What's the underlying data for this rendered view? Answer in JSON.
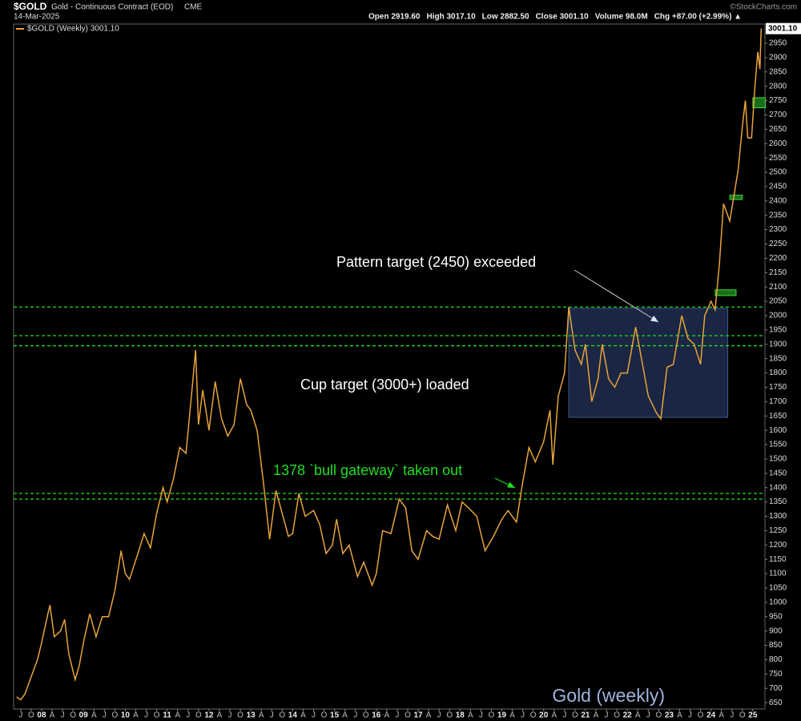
{
  "chart_data": {
    "type": "line",
    "symbol": "$GOLD",
    "title": "Gold - Continuous Contract (EOD)",
    "exchange": "CME",
    "date": "14-Mar-2025",
    "quote": [
      "Open 2919.60",
      "High 3017.10",
      "Low 2882.50",
      "Close 3001.10",
      "Volume 98.0M",
      "Chg +87.00 (+2.99%) ▲"
    ],
    "credit": "©StockCharts.com",
    "watermark": "Gold (weekly)",
    "last_tag": {
      "text": "3001.10",
      "value": 3001.1
    },
    "series": [
      {
        "name": "$GOLD (Weekly) 3001.10",
        "color": "#e8a33a",
        "x": [
          2007.4,
          2007.5,
          2007.6,
          2007.75,
          2007.9,
          2008.0,
          2008.15,
          2008.2,
          2008.3,
          2008.45,
          2008.55,
          2008.65,
          2008.8,
          2008.9,
          2009.0,
          2009.15,
          2009.3,
          2009.45,
          2009.6,
          2009.75,
          2009.9,
          2010.0,
          2010.1,
          2010.3,
          2010.45,
          2010.6,
          2010.75,
          2010.9,
          2011.0,
          2011.15,
          2011.3,
          2011.45,
          2011.6,
          2011.68,
          2011.75,
          2011.85,
          2012.0,
          2012.15,
          2012.3,
          2012.45,
          2012.6,
          2012.75,
          2012.9,
          2013.0,
          2013.15,
          2013.3,
          2013.45,
          2013.6,
          2013.75,
          2013.9,
          2014.0,
          2014.15,
          2014.3,
          2014.5,
          2014.65,
          2014.8,
          2014.95,
          2015.05,
          2015.2,
          2015.35,
          2015.55,
          2015.7,
          2015.9,
          2016.0,
          2016.15,
          2016.35,
          2016.55,
          2016.7,
          2016.85,
          2017.0,
          2017.2,
          2017.35,
          2017.5,
          2017.7,
          2017.9,
          2018.05,
          2018.2,
          2018.4,
          2018.6,
          2018.8,
          2019.0,
          2019.15,
          2019.35,
          2019.5,
          2019.65,
          2019.8,
          2020.0,
          2020.15,
          2020.22,
          2020.35,
          2020.5,
          2020.6,
          2020.75,
          2020.9,
          2021.0,
          2021.15,
          2021.3,
          2021.4,
          2021.55,
          2021.7,
          2021.85,
          2022.0,
          2022.2,
          2022.35,
          2022.5,
          2022.7,
          2022.8,
          2022.95,
          2023.1,
          2023.3,
          2023.45,
          2023.6,
          2023.75,
          2023.85,
          2024.0,
          2024.1,
          2024.2,
          2024.3,
          2024.45,
          2024.55,
          2024.65,
          2024.75,
          2024.82,
          2024.88,
          2024.97,
          2025.05,
          2025.12,
          2025.17,
          2025.2
        ],
        "values": [
          670,
          660,
          680,
          740,
          800,
          860,
          960,
          990,
          880,
          900,
          940,
          820,
          730,
          780,
          860,
          960,
          880,
          950,
          950,
          1040,
          1180,
          1100,
          1080,
          1170,
          1240,
          1190,
          1310,
          1400,
          1350,
          1430,
          1540,
          1520,
          1750,
          1880,
          1620,
          1740,
          1600,
          1770,
          1640,
          1580,
          1620,
          1780,
          1690,
          1670,
          1600,
          1420,
          1220,
          1390,
          1310,
          1230,
          1240,
          1380,
          1300,
          1320,
          1270,
          1170,
          1200,
          1290,
          1170,
          1200,
          1090,
          1140,
          1060,
          1100,
          1250,
          1240,
          1360,
          1330,
          1180,
          1150,
          1250,
          1230,
          1220,
          1340,
          1250,
          1350,
          1330,
          1300,
          1180,
          1230,
          1290,
          1320,
          1280,
          1420,
          1540,
          1490,
          1560,
          1670,
          1480,
          1720,
          1800,
          2030,
          1880,
          1830,
          1900,
          1700,
          1780,
          1900,
          1780,
          1750,
          1800,
          1800,
          1960,
          1840,
          1720,
          1660,
          1640,
          1820,
          1830,
          2000,
          1920,
          1900,
          1830,
          2000,
          2050,
          2020,
          2180,
          2390,
          2330,
          2420,
          2510,
          2660,
          2750,
          2620,
          2620,
          2800,
          2920,
          2860,
          3001.1
        ]
      }
    ],
    "levels": [
      2030,
      1930,
      1895,
      1380,
      1360
    ],
    "zones": [
      {
        "x0": 2020.6,
        "x1": 2024.4,
        "y0": 1645,
        "y1": 2025,
        "color": "#1e2d4f"
      },
      {
        "x0": 2024.1,
        "x1": 2024.6,
        "y0": 2070,
        "y1": 2090,
        "color": "#1f8a1f"
      },
      {
        "x0": 2024.45,
        "x1": 2024.75,
        "y0": 2405,
        "y1": 2420,
        "color": "#1f8a1f"
      },
      {
        "x0": 2025.0,
        "x1": 2025.3,
        "y0": 2725,
        "y1": 2760,
        "color": "#1f8a1f"
      }
    ],
    "annotations": [
      {
        "text": "Pattern target (2450) exceeded",
        "color": "#ffffff"
      },
      {
        "text": "Cup target (3000+) loaded",
        "color": "#ffffff"
      },
      {
        "text": "1378 `bull gateway` taken out",
        "color": "#22dd22"
      }
    ],
    "xlim": [
      2007.33,
      2025.29
    ],
    "ylim": [
      628,
      3017
    ],
    "yticks": [
      650,
      700,
      750,
      800,
      850,
      900,
      950,
      1000,
      1050,
      1100,
      1150,
      1200,
      1250,
      1300,
      1350,
      1400,
      1450,
      1500,
      1550,
      1600,
      1650,
      1700,
      1750,
      1800,
      1850,
      1900,
      1950,
      2000,
      2050,
      2100,
      2150,
      2200,
      2250,
      2300,
      2350,
      2400,
      2450,
      2500,
      2550,
      2600,
      2650,
      2700,
      2750,
      2800,
      2850,
      2900,
      2950,
      3000
    ],
    "xticks": [
      {
        "value": 2007.5,
        "label": "J"
      },
      {
        "value": 2007.75,
        "label": "O"
      },
      {
        "value": 2008,
        "label": "08"
      },
      {
        "value": 2008.25,
        "label": "A"
      },
      {
        "value": 2008.5,
        "label": "J"
      },
      {
        "value": 2008.75,
        "label": "O"
      },
      {
        "value": 2009,
        "label": "09"
      },
      {
        "value": 2009.25,
        "label": "A"
      },
      {
        "value": 2009.5,
        "label": "J"
      },
      {
        "value": 2009.75,
        "label": "O"
      },
      {
        "value": 2010,
        "label": "10"
      },
      {
        "value": 2010.25,
        "label": "A"
      },
      {
        "value": 2010.5,
        "label": "J"
      },
      {
        "value": 2010.75,
        "label": "O"
      },
      {
        "value": 2011,
        "label": "11"
      },
      {
        "value": 2011.25,
        "label": "A"
      },
      {
        "value": 2011.5,
        "label": "J"
      },
      {
        "value": 2011.75,
        "label": "O"
      },
      {
        "value": 2012,
        "label": "12"
      },
      {
        "value": 2012.25,
        "label": "A"
      },
      {
        "value": 2012.5,
        "label": "J"
      },
      {
        "value": 2012.75,
        "label": "O"
      },
      {
        "value": 2013,
        "label": "13"
      },
      {
        "value": 2013.25,
        "label": "A"
      },
      {
        "value": 2013.5,
        "label": "J"
      },
      {
        "value": 2013.75,
        "label": "O"
      },
      {
        "value": 2014,
        "label": "14"
      },
      {
        "value": 2014.25,
        "label": "A"
      },
      {
        "value": 2014.5,
        "label": "J"
      },
      {
        "value": 2014.75,
        "label": "O"
      },
      {
        "value": 2015,
        "label": "15"
      },
      {
        "value": 2015.25,
        "label": "A"
      },
      {
        "value": 2015.5,
        "label": "J"
      },
      {
        "value": 2015.75,
        "label": "O"
      },
      {
        "value": 2016,
        "label": "16"
      },
      {
        "value": 2016.25,
        "label": "A"
      },
      {
        "value": 2016.5,
        "label": "J"
      },
      {
        "value": 2016.75,
        "label": "O"
      },
      {
        "value": 2017,
        "label": "17"
      },
      {
        "value": 2017.25,
        "label": "A"
      },
      {
        "value": 2017.5,
        "label": "J"
      },
      {
        "value": 2017.75,
        "label": "O"
      },
      {
        "value": 2018,
        "label": "18"
      },
      {
        "value": 2018.25,
        "label": "A"
      },
      {
        "value": 2018.5,
        "label": "J"
      },
      {
        "value": 2018.75,
        "label": "O"
      },
      {
        "value": 2019,
        "label": "19"
      },
      {
        "value": 2019.25,
        "label": "A"
      },
      {
        "value": 2019.5,
        "label": "J"
      },
      {
        "value": 2019.75,
        "label": "O"
      },
      {
        "value": 2020,
        "label": "20"
      },
      {
        "value": 2020.25,
        "label": "A"
      },
      {
        "value": 2020.5,
        "label": "J"
      },
      {
        "value": 2020.75,
        "label": "O"
      },
      {
        "value": 2021,
        "label": "21"
      },
      {
        "value": 2021.25,
        "label": "A"
      },
      {
        "value": 2021.5,
        "label": "J"
      },
      {
        "value": 2021.75,
        "label": "O"
      },
      {
        "value": 2022,
        "label": "22"
      },
      {
        "value": 2022.25,
        "label": "A"
      },
      {
        "value": 2022.5,
        "label": "J"
      },
      {
        "value": 2022.75,
        "label": "O"
      },
      {
        "value": 2023,
        "label": "23"
      },
      {
        "value": 2023.25,
        "label": "A"
      },
      {
        "value": 2023.5,
        "label": "J"
      },
      {
        "value": 2023.75,
        "label": "O"
      },
      {
        "value": 2024,
        "label": "24"
      },
      {
        "value": 2024.25,
        "label": "A"
      },
      {
        "value": 2024.5,
        "label": "J"
      },
      {
        "value": 2024.75,
        "label": "O"
      },
      {
        "value": 2025,
        "label": "25"
      }
    ]
  }
}
